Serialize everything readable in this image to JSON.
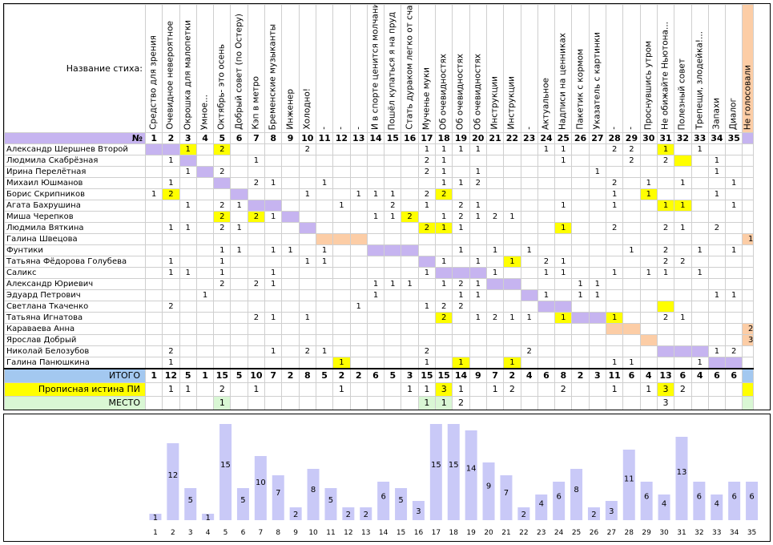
{
  "sheet": {
    "name_header": "Название стиха:",
    "number_symbol": "№",
    "poem_titles": [
      "Средство для зрения",
      "Очевидное невероятное",
      "Окрошка для малопетки",
      "Умное...",
      "Октябрь- это осень",
      "Добрый совет (по Остеру)",
      "Кэп в метро",
      "Бременские музыканты",
      "Инженер",
      "Холодно!",
      "-",
      "-",
      "-",
      "И в спорте ценится молчание",
      "Пошёл купаться я на пруд",
      "Стать дураком легко от счастья",
      "Мученье муки",
      "Об очевидностях",
      "Об очевидностях",
      "Об очевидностях",
      "Инструкции",
      "Инструкции",
      "-",
      "Актуальное",
      "Надписи на ценниках",
      "Пакетик с кормом",
      "Указатель с картинки",
      "-",
      "-",
      "Проснувшись утром",
      "Не обижайте Ньютона...",
      "Полезный совет",
      "Трепещи, злодейка!...",
      "Запахи",
      "Диалог"
    ],
    "not_voted_header": "Не голосовали",
    "numbers": [
      "1",
      "2",
      "3",
      "4",
      "5",
      "6",
      "7",
      "8",
      "9",
      "10",
      "11",
      "12",
      "13",
      "14",
      "15",
      "16",
      "17",
      "18",
      "19",
      "20",
      "21",
      "22",
      "23",
      "24",
      "25",
      "26",
      "27",
      "28",
      "29",
      "30",
      "31",
      "32",
      "33",
      "34",
      "35"
    ],
    "voters": [
      {
        "name": "Александр Шершнев Второй",
        "votes": {
          "3": "1",
          "5": "2",
          "10": "2",
          "17": "1",
          "18": "1",
          "19": "1",
          "20": "1",
          "24": "1",
          "25": "1",
          "28": "2",
          "29": "2",
          "31": "1",
          "33": "1"
        },
        "yellow": [
          3,
          5,
          31
        ],
        "purple": [
          1,
          2
        ],
        "nv": ""
      },
      {
        "name": "Людмила Скабрёзная",
        "votes": {
          "2": "1",
          "7": "1",
          "17": "2",
          "18": "1",
          "25": "1",
          "29": "2",
          "31": "2",
          "34": "1"
        },
        "yellow": [
          32
        ],
        "purple": [
          3
        ],
        "nv": ""
      },
      {
        "name": "Ирина Перелётная",
        "votes": {
          "3": "1",
          "5": "2",
          "17": "2",
          "18": "1",
          "20": "1",
          "27": "1",
          "34": "1"
        },
        "yellow": [],
        "purple": [
          4
        ],
        "nv": ""
      },
      {
        "name": "Михаил Юшманов",
        "votes": {
          "2": "1",
          "7": "2",
          "8": "1",
          "11": "1",
          "18": "1",
          "19": "1",
          "20": "2",
          "28": "2",
          "30": "1",
          "32": "1",
          "35": "1"
        },
        "yellow": [],
        "purple": [
          5
        ],
        "nv": ""
      },
      {
        "name": "Борис Скрипников",
        "votes": {
          "1": "1",
          "2": "2",
          "10": "1",
          "13": "1",
          "14": "1",
          "15": "1",
          "17": "2",
          "18": "2",
          "28": "1",
          "30": "1",
          "34": "1"
        },
        "yellow": [
          2,
          18,
          30
        ],
        "purple": [
          6
        ],
        "nv": ""
      },
      {
        "name": "Агата Бахрушина",
        "votes": {
          "3": "1",
          "5": "2",
          "6": "1",
          "12": "1",
          "15": "2",
          "17": "1",
          "19": "2",
          "20": "1",
          "25": "1",
          "28": "1",
          "31": "1",
          "32": "1",
          "35": "1"
        },
        "yellow": [
          31,
          32
        ],
        "purple": [
          7,
          8
        ],
        "nv": ""
      },
      {
        "name": "Миша Черепков",
        "votes": {
          "5": "2",
          "7": "2",
          "8": "1",
          "14": "1",
          "15": "1",
          "16": "2",
          "18": "1",
          "19": "2",
          "20": "1",
          "21": "2",
          "22": "1"
        },
        "yellow": [
          5,
          7,
          16
        ],
        "purple": [
          9
        ],
        "nv": ""
      },
      {
        "name": "Людмила Вяткина",
        "votes": {
          "2": "1",
          "3": "1",
          "5": "2",
          "6": "1",
          "17": "2",
          "18": "1",
          "19": "1",
          "25": "1",
          "28": "2",
          "31": "2",
          "32": "1",
          "34": "2"
        },
        "yellow": [
          17,
          18,
          25
        ],
        "purple": [
          10
        ],
        "nv": ""
      },
      {
        "name": "Галина Швецова",
        "votes": {},
        "yellow": [],
        "purple": [],
        "peach": [
          11,
          12,
          13
        ],
        "nv": "1"
      },
      {
        "name": "Фунтики",
        "votes": {
          "5": "1",
          "6": "1",
          "8": "1",
          "9": "1",
          "11": "1",
          "19": "1",
          "21": "1",
          "23": "1",
          "29": "1",
          "31": "2",
          "33": "1",
          "35": "1"
        },
        "yellow": [],
        "purple": [
          14,
          15,
          16
        ],
        "nv": ""
      },
      {
        "name": "Татьяна Фёдорова Голубева",
        "votes": {
          "2": "1",
          "5": "1",
          "10": "1",
          "11": "1",
          "18": "1",
          "20": "1",
          "22": "1",
          "24": "2",
          "25": "1",
          "31": "2",
          "32": "2"
        },
        "yellow": [
          22
        ],
        "purple": [
          17
        ],
        "nv": ""
      },
      {
        "name": "Саликс",
        "votes": {
          "2": "1",
          "3": "1",
          "5": "1",
          "8": "1",
          "17": "1",
          "21": "1",
          "24": "1",
          "25": "1",
          "28": "1",
          "30": "1",
          "31": "1",
          "33": "1"
        },
        "yellow": [],
        "purple": [
          18,
          19,
          20
        ],
        "nv": ""
      },
      {
        "name": "Александр Юриевич",
        "votes": {
          "5": "2",
          "7": "2",
          "8": "1",
          "14": "1",
          "15": "1",
          "16": "1",
          "18": "1",
          "19": "2",
          "20": "1",
          "26": "1",
          "27": "1"
        },
        "yellow": [],
        "purple": [
          21,
          22
        ],
        "nv": ""
      },
      {
        "name": "Эдуард Петрович",
        "votes": {
          "4": "1",
          "14": "1",
          "19": "1",
          "20": "1",
          "24": "1",
          "26": "1",
          "27": "1",
          "34": "1",
          "35": "1"
        },
        "yellow": [],
        "purple": [
          23
        ],
        "nv": ""
      },
      {
        "name": "Светлана Ткаченко",
        "votes": {
          "2": "2",
          "13": "1",
          "17": "1",
          "18": "2",
          "19": "2"
        },
        "yellow": [
          31
        ],
        "purple": [
          24,
          25
        ],
        "nv": ""
      },
      {
        "name": "Татьяна Игнатова",
        "votes": {
          "7": "2",
          "8": "1",
          "10": "1",
          "18": "2",
          "20": "1",
          "21": "2",
          "22": "1",
          "23": "1",
          "25": "1",
          "28": "1",
          "31": "2",
          "32": "1"
        },
        "yellow": [
          18,
          25,
          28
        ],
        "purple": [
          26,
          27
        ],
        "nv": ""
      },
      {
        "name": "Караваева Анна",
        "votes": {},
        "yellow": [],
        "purple": [],
        "peach": [
          28,
          29
        ],
        "nv": "2"
      },
      {
        "name": "Ярослав Добрый",
        "votes": {},
        "yellow": [],
        "purple": [],
        "peach": [
          30
        ],
        "nv": "3"
      },
      {
        "name": "Николай Белозубов",
        "votes": {
          "2": "2",
          "8": "1",
          "10": "2",
          "11": "1",
          "17": "2",
          "23": "2",
          "34": "1",
          "35": "2"
        },
        "yellow": [],
        "purple": [
          31,
          32,
          33
        ],
        "nv": ""
      },
      {
        "name": "Галина Панюшкина",
        "votes": {
          "2": "1",
          "12": "1",
          "17": "1",
          "19": "1",
          "22": "1",
          "28": "1",
          "29": "1",
          "33": "1"
        },
        "yellow": [
          12,
          19,
          22
        ],
        "purple": [
          34,
          35
        ],
        "nv": ""
      }
    ],
    "totals_label": "ИТОГО",
    "totals": [
      "1",
      "12",
      "5",
      "1",
      "15",
      "5",
      "10",
      "7",
      "2",
      "8",
      "5",
      "2",
      "2",
      "6",
      "5",
      "3",
      "15",
      "15",
      "14",
      "9",
      "7",
      "2",
      "4",
      "6",
      "8",
      "2",
      "3",
      "11",
      "6",
      "4",
      "13",
      "6",
      "4",
      "6",
      "6"
    ],
    "pi_label": "Прописная истина ПИ",
    "pi": {
      "2": "1",
      "3": "1",
      "5": "2",
      "7": "1",
      "12": "1",
      "16": "1",
      "17": "1",
      "18": "3",
      "19": "1",
      "21": "1",
      "22": "2",
      "25": "2",
      "28": "1",
      "30": "1",
      "31": "3",
      "32": "2"
    },
    "pi_yellow": [
      18,
      31
    ],
    "place_label": "МЕСТО",
    "place": {
      "5": "1",
      "17": "1",
      "18": "1",
      "19": "2",
      "31": "3"
    },
    "place_green": [
      5,
      17,
      18
    ]
  },
  "chart_data": {
    "type": "bar",
    "categories": [
      "1",
      "2",
      "3",
      "4",
      "5",
      "6",
      "7",
      "8",
      "9",
      "10",
      "11",
      "12",
      "13",
      "14",
      "15",
      "16",
      "17",
      "18",
      "19",
      "20",
      "21",
      "22",
      "23",
      "24",
      "25",
      "26",
      "27",
      "28",
      "29",
      "30",
      "31",
      "32",
      "33",
      "34",
      "35"
    ],
    "values": [
      1,
      12,
      5,
      1,
      15,
      5,
      10,
      7,
      2,
      8,
      5,
      2,
      2,
      6,
      5,
      3,
      15,
      15,
      14,
      9,
      7,
      2,
      4,
      6,
      8,
      2,
      3,
      11,
      6,
      4,
      13,
      6,
      4,
      6,
      6
    ],
    "ylim": [
      0,
      15.5
    ],
    "bar_color": "#c9c9f7",
    "title": "",
    "xlabel": "",
    "ylabel": ""
  }
}
